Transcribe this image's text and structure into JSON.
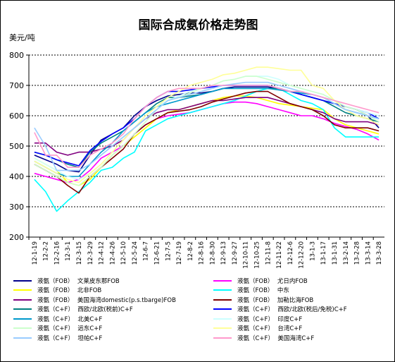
{
  "chart_data": {
    "type": "line",
    "title": "国际合成氨价格走势图",
    "ylabel": "美元/吨",
    "xlabel": "",
    "ylim": [
      200,
      800
    ],
    "yticks": [
      200,
      300,
      400,
      500,
      600,
      700,
      800
    ],
    "grid": "horizontal dotted",
    "legend_position": "bottom",
    "x_tick_labels": [
      "12-1-19",
      "12-2-2",
      "12-2-16",
      "12-3-1",
      "12-3-15",
      "12-3-29",
      "12-4-12",
      "12-4-26",
      "12-5-10",
      "12-5-24",
      "12-6-7",
      "12-6-21",
      "12-7-5",
      "12-7-19",
      "12-8-2",
      "12-8-16",
      "12-8-30",
      "12-9-13",
      "12-9-27",
      "12-10-11",
      "12-10-25",
      "12-11-8",
      "12-11-22",
      "12-12-6",
      "12-12-20",
      "13-1-3",
      "13-1-17",
      "13-1-31",
      "13-2-14",
      "13-2-28",
      "13-3-14",
      "13-3-28"
    ],
    "series": [
      {
        "name": "液氨（FOB）  文莱皮东那FOB",
        "color": "#00008b",
        "values": [
          470,
          455,
          440,
          420,
          415,
          470,
          520,
          540,
          560,
          600,
          630,
          650,
          665,
          670,
          675,
          675,
          680,
          690,
          695,
          695,
          695,
          695,
          690,
          680,
          670,
          660,
          650,
          640,
          630,
          620,
          600,
          560
        ]
      },
      {
        "name": "液氨（FOB）  尤日内FOB",
        "color": "#ff00ff",
        "values": [
          410,
          400,
          390,
          380,
          390,
          420,
          460,
          480,
          500,
          540,
          570,
          590,
          600,
          605,
          610,
          620,
          630,
          640,
          645,
          645,
          640,
          630,
          620,
          610,
          600,
          600,
          590,
          575,
          565,
          555,
          540,
          520
        ]
      },
      {
        "name": "液氨（FOB）  北非FOB",
        "color": "#ffff00",
        "values": [
          460,
          440,
          420,
          380,
          370,
          390,
          430,
          470,
          500,
          530,
          560,
          590,
          610,
          620,
          630,
          640,
          650,
          660,
          665,
          665,
          660,
          650,
          640,
          635,
          630,
          625,
          620,
          590,
          570,
          560,
          550,
          540
        ]
      },
      {
        "name": "液氨（FOB）  中东",
        "color": "#00ffff",
        "values": [
          390,
          350,
          285,
          320,
          350,
          380,
          420,
          430,
          460,
          480,
          550,
          570,
          590,
          600,
          610,
          620,
          630,
          640,
          650,
          665,
          680,
          690,
          690,
          670,
          650,
          640,
          620,
          560,
          530,
          530,
          530,
          530
        ]
      },
      {
        "name": "液氨（FOB）  美国海湾domestic(p.s.tbarge)FOB",
        "color": "#800080",
        "values": [
          510,
          510,
          480,
          470,
          480,
          480,
          490,
          500,
          520,
          560,
          590,
          610,
          620,
          620,
          630,
          640,
          650,
          650,
          655,
          660,
          660,
          660,
          650,
          640,
          630,
          620,
          610,
          590,
          580,
          580,
          580,
          570
        ]
      },
      {
        "name": "液氨（FOB）  加勒比海FOB",
        "color": "#800000",
        "values": [
          440,
          420,
          400,
          370,
          345,
          400,
          430,
          460,
          490,
          540,
          570,
          590,
          610,
          615,
          620,
          630,
          645,
          655,
          665,
          675,
          680,
          680,
          660,
          640,
          630,
          620,
          600,
          570,
          560,
          560,
          560,
          550
        ]
      },
      {
        "name": "液氨（C+F）  西欧/北欧(税前)C+F",
        "color": "#008080",
        "values": [
          480,
          470,
          455,
          440,
          430,
          480,
          510,
          530,
          550,
          580,
          610,
          640,
          660,
          660,
          665,
          670,
          680,
          690,
          690,
          690,
          690,
          690,
          690,
          680,
          670,
          660,
          650,
          630,
          610,
          600,
          590,
          580
        ]
      },
      {
        "name": "液氨（C+F）  西欧/北欧(税后/免税)C+F",
        "color": "#0000ff",
        "values": [
          480,
          470,
          455,
          445,
          435,
          485,
          515,
          540,
          560,
          590,
          630,
          660,
          680,
          680,
          685,
          690,
          695,
          700,
          700,
          700,
          700,
          700,
          690,
          680,
          670,
          660,
          650,
          640,
          630,
          620,
          610,
          590
        ]
      },
      {
        "name": "液氨（C+F）  北美C+F",
        "color": "#0099cc",
        "values": [
          450,
          430,
          410,
          400,
          400,
          440,
          480,
          510,
          550,
          580,
          610,
          630,
          640,
          650,
          660,
          670,
          680,
          690,
          690,
          690,
          690,
          690,
          685,
          680,
          675,
          670,
          660,
          640,
          620,
          610,
          600,
          590
        ]
      },
      {
        "name": "液氨（C+F）  印度C+F",
        "color": "#ccffff",
        "values": [
          460,
          440,
          420,
          400,
          390,
          410,
          440,
          480,
          520,
          560,
          600,
          630,
          650,
          665,
          680,
          690,
          700,
          715,
          720,
          730,
          730,
          730,
          720,
          700,
          690,
          680,
          670,
          650,
          630,
          620,
          610,
          600
        ]
      },
      {
        "name": "液氨（C+F）  远东C+F",
        "color": "#ccffcc",
        "values": [
          440,
          420,
          400,
          380,
          370,
          400,
          430,
          470,
          500,
          540,
          580,
          620,
          650,
          660,
          675,
          690,
          700,
          715,
          720,
          730,
          730,
          720,
          710,
          700,
          690,
          680,
          670,
          650,
          630,
          620,
          600,
          580
        ]
      },
      {
        "name": "液氨（C+F）  台湾C+F",
        "color": "#ffff99",
        "values": [
          450,
          430,
          410,
          390,
          380,
          410,
          440,
          480,
          520,
          560,
          600,
          630,
          660,
          680,
          700,
          710,
          720,
          735,
          740,
          750,
          760,
          760,
          755,
          750,
          750,
          700,
          690,
          650,
          620,
          600,
          590,
          570
        ]
      },
      {
        "name": "液氨（C+F）  坦帕C+F",
        "color": "#99ccff",
        "values": [
          560,
          500,
          420,
          420,
          420,
          440,
          470,
          500,
          530,
          560,
          590,
          620,
          650,
          660,
          670,
          680,
          690,
          700,
          705,
          710,
          710,
          710,
          700,
          690,
          680,
          670,
          660,
          640,
          620,
          610,
          600,
          590
        ]
      },
      {
        "name": "液氨（C+F）  美国海湾C+F",
        "color": "#ff99cc",
        "values": [
          545,
          470,
          470,
          430,
          430,
          470,
          490,
          510,
          540,
          590,
          630,
          660,
          680,
          690,
          690,
          690,
          700,
          700,
          700,
          700,
          700,
          700,
          690,
          680,
          680,
          670,
          660,
          650,
          640,
          630,
          620,
          610
        ]
      }
    ]
  }
}
